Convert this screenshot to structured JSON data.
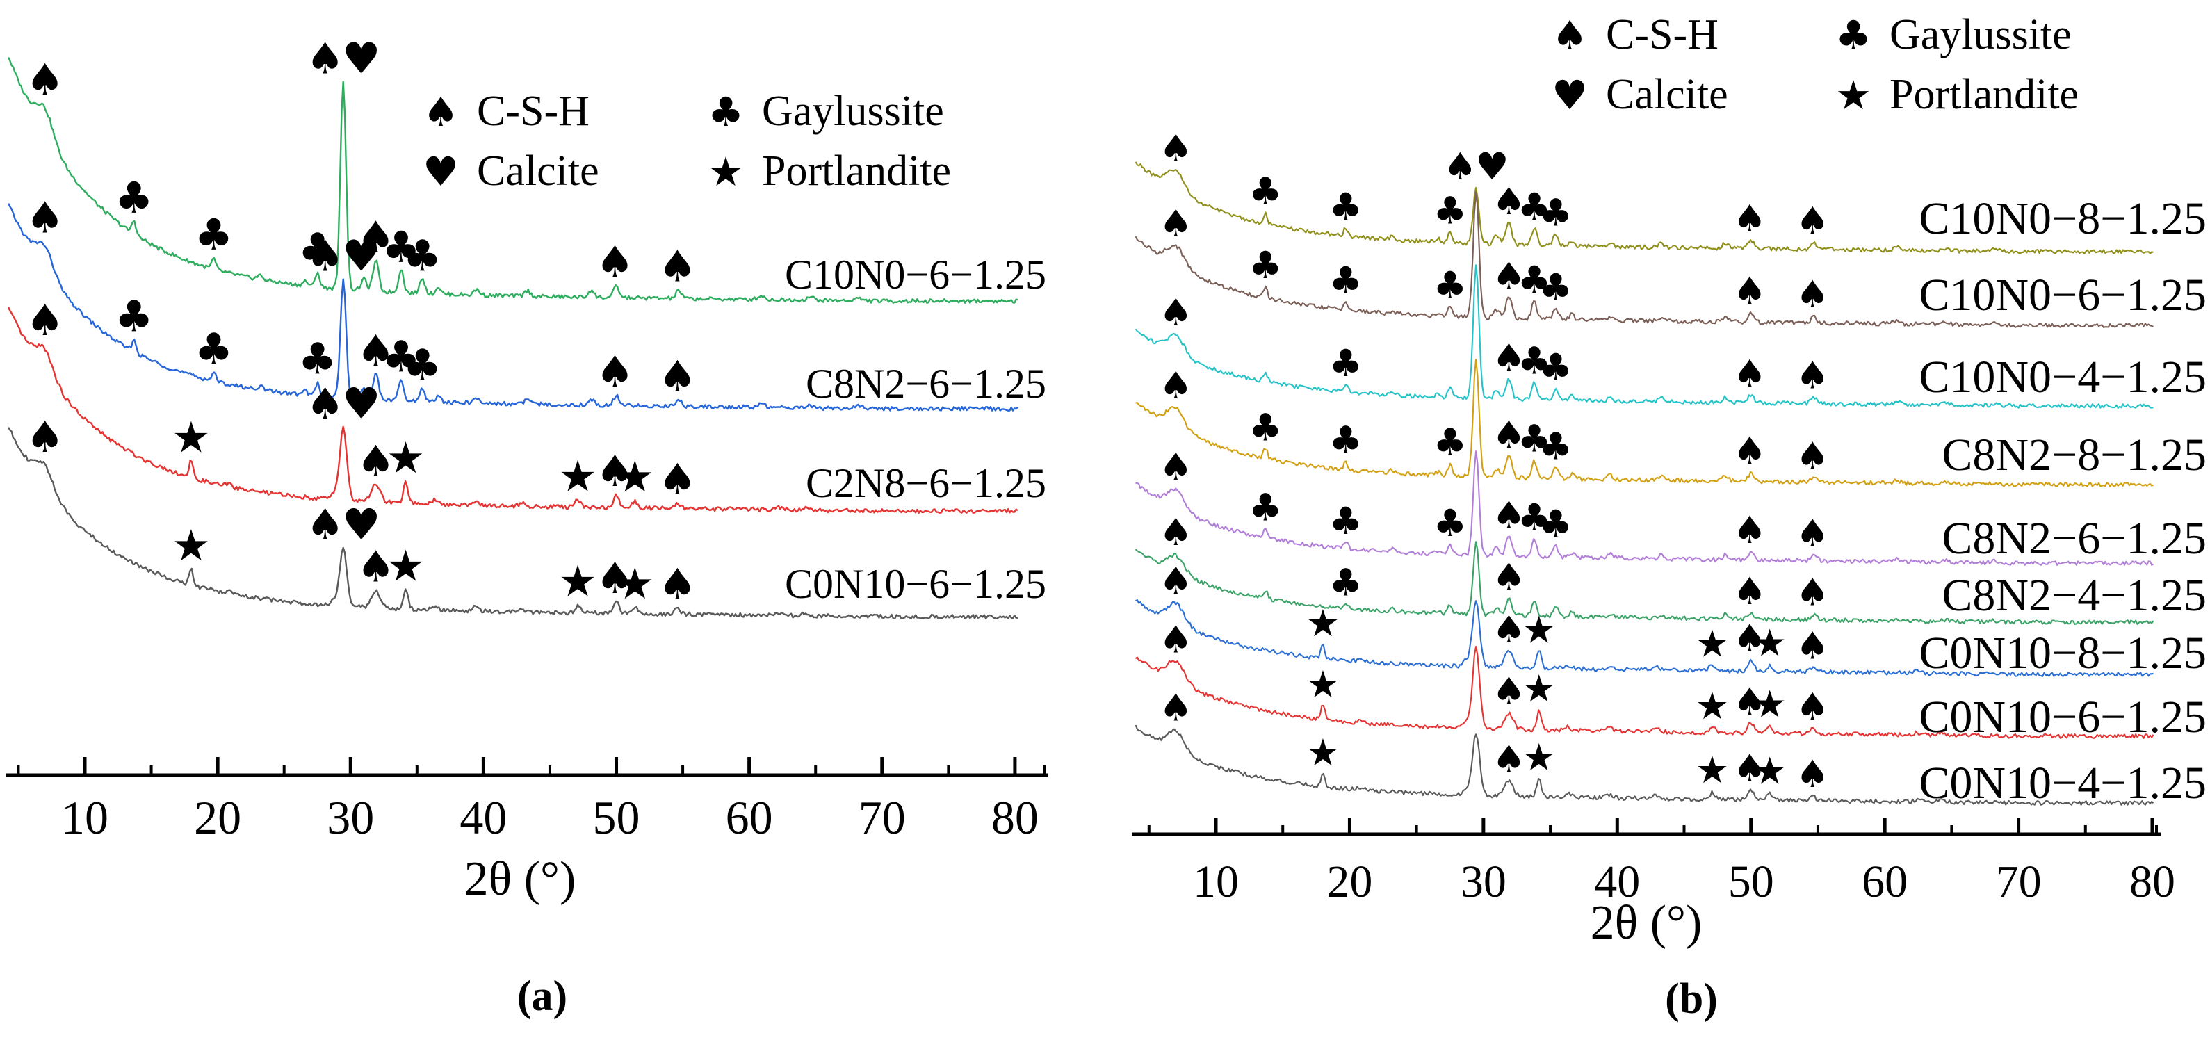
{
  "figure": {
    "panel_a_letter": "(a)",
    "panel_b_letter": "(b)"
  },
  "legend": {
    "items": [
      {
        "symbol": "♠",
        "icon": "spade-icon",
        "label": "C-S-H"
      },
      {
        "symbol": "♣",
        "icon": "club-icon",
        "label": "Gaylussite"
      },
      {
        "symbol": "♥",
        "icon": "heart-icon",
        "label": "Calcite"
      },
      {
        "symbol": "★",
        "icon": "star-icon",
        "label": "Portlandite"
      }
    ]
  },
  "marker_glyphs": {
    "spade": "♠",
    "heart": "♥",
    "club": "♣",
    "star": "★"
  },
  "marker_key": {
    "spade": "C-S-H",
    "heart": "Calcite",
    "club": "Gaylussite",
    "star": "Portlandite"
  },
  "peak_patterns": {
    "G": [
      [
        7.0,
        34,
        0.9
      ],
      [
        13.7,
        17,
        0.22
      ],
      [
        19.7,
        13,
        0.22
      ],
      [
        23.2,
        5,
        0.3
      ],
      [
        26.6,
        6,
        0.25
      ],
      [
        27.5,
        19,
        0.22
      ],
      [
        31.0,
        14,
        0.3
      ],
      [
        31.9,
        38,
        0.3
      ],
      [
        33.8,
        30,
        0.26
      ],
      [
        35.4,
        20,
        0.26
      ],
      [
        36.6,
        9,
        0.25
      ],
      [
        39.5,
        7,
        0.3
      ],
      [
        43.3,
        7,
        0.3
      ],
      [
        48.1,
        9,
        0.3
      ],
      [
        50.0,
        14,
        0.3
      ],
      [
        54.7,
        10,
        0.3
      ],
      [
        60.9,
        5,
        0.35
      ],
      [
        64.6,
        4,
        0.35
      ],
      [
        68.2,
        3,
        0.4
      ]
    ],
    "P": [
      [
        7.0,
        34,
        0.9
      ],
      [
        18.0,
        24,
        0.2
      ],
      [
        20.8,
        4,
        0.3
      ],
      [
        28.7,
        9,
        0.3
      ],
      [
        31.9,
        26,
        0.45
      ],
      [
        34.15,
        30,
        0.24
      ],
      [
        36.3,
        6,
        0.3
      ],
      [
        39.4,
        6,
        0.3
      ],
      [
        42.9,
        5,
        0.3
      ],
      [
        47.1,
        11,
        0.28
      ],
      [
        50.0,
        17,
        0.32
      ],
      [
        51.4,
        10,
        0.28
      ],
      [
        54.6,
        8,
        0.3
      ],
      [
        62.4,
        4,
        0.35
      ],
      [
        64.2,
        3,
        0.35
      ]
    ]
  },
  "chart_data": [
    {
      "type": "line",
      "panel": "a",
      "xlabel": "2θ (°)",
      "xlim": [
        4,
        82
      ],
      "xticks": [
        10,
        20,
        30,
        40,
        50,
        60,
        70,
        80
      ],
      "grid": false,
      "legend_position": "upper right inside",
      "main_peak_2theta": 29.45,
      "series": [
        {
          "name": "C10N0−6−1.25",
          "color": "#2EAD5F",
          "pattern": "G",
          "baseline_y": 433,
          "label_y": 400,
          "start_height": 350,
          "main_peak_height": 300,
          "peak_scale": 1.15,
          "markers": [
            [
              "spade",
              7
            ],
            [
              "club",
              13.7
            ],
            [
              "club",
              19.7
            ],
            [
              "club",
              27.5
            ],
            [
              "spade",
              29.45,
              -26
            ],
            [
              "heart",
              29.45,
              26
            ],
            [
              "spade",
              31.9
            ],
            [
              "club",
              33.8
            ],
            [
              "club",
              35.4
            ],
            [
              "spade",
              49.9
            ],
            [
              "spade",
              54.6
            ]
          ]
        },
        {
          "name": "C8N2−6−1.25",
          "color": "#2766D9",
          "pattern": "G",
          "baseline_y": 588,
          "label_y": 557,
          "start_height": 290,
          "main_peak_height": 172,
          "peak_scale": 1.0,
          "markers": [
            [
              "spade",
              7
            ],
            [
              "club",
              13.7
            ],
            [
              "club",
              19.7
            ],
            [
              "club",
              27.5
            ],
            [
              "spade",
              29.45,
              -26
            ],
            [
              "heart",
              29.45,
              26
            ],
            [
              "spade",
              31.9
            ],
            [
              "club",
              33.8
            ],
            [
              "club",
              35.4
            ],
            [
              "spade",
              49.9
            ],
            [
              "spade",
              54.6
            ]
          ]
        },
        {
          "name": "C2N8−6−1.25",
          "color": "#E43434",
          "pattern": "P",
          "baseline_y": 735,
          "label_y": 700,
          "start_height": 288,
          "main_peak_height": 105,
          "peak_scale": 1.0,
          "markers": [
            [
              "spade",
              7
            ],
            [
              "star",
              18
            ],
            [
              "spade",
              29.45,
              -26
            ],
            [
              "heart",
              29.45,
              26
            ],
            [
              "spade",
              31.9
            ],
            [
              "star",
              34.15
            ],
            [
              "star",
              47.1
            ],
            [
              "spade",
              49.9
            ],
            [
              "star",
              51.4
            ],
            [
              "spade",
              54.6
            ]
          ]
        },
        {
          "name": "C0N10−6−1.25",
          "color": "#5A5A5A",
          "pattern": "P",
          "baseline_y": 887,
          "label_y": 845,
          "start_height": 268,
          "main_peak_height": 82,
          "peak_scale": 0.95,
          "markers": [
            [
              "spade",
              7
            ],
            [
              "star",
              18
            ],
            [
              "spade",
              29.45,
              -26
            ],
            [
              "heart",
              29.45,
              26
            ],
            [
              "spade",
              31.9
            ],
            [
              "star",
              34.15
            ],
            [
              "star",
              47.1
            ],
            [
              "spade",
              49.9
            ],
            [
              "star",
              51.4
            ],
            [
              "spade",
              54.6
            ]
          ]
        }
      ]
    },
    {
      "type": "line",
      "panel": "b",
      "xlabel": "2θ (°)",
      "xlim": [
        4,
        81
      ],
      "xticks": [
        10,
        20,
        30,
        40,
        50,
        60,
        70,
        80
      ],
      "grid": false,
      "legend_position": "top inside",
      "main_peak_2theta": 29.45,
      "series": [
        {
          "name": "C10N0−8−1.25",
          "color": "#8F8F1A",
          "pattern": "G",
          "baseline_y": 362,
          "label_y": 320,
          "start_height": 115,
          "main_peak_height": 80,
          "peak_scale": 0.85,
          "markers": [
            [
              "spade",
              7
            ],
            [
              "club",
              13.7
            ],
            [
              "club",
              19.7
            ],
            [
              "club",
              27.5
            ],
            [
              "spade",
              29.45,
              -23
            ],
            [
              "heart",
              29.45,
              23
            ],
            [
              "spade",
              31.9
            ],
            [
              "club",
              33.8
            ],
            [
              "club",
              35.4
            ],
            [
              "spade",
              49.9
            ],
            [
              "spade",
              54.6
            ]
          ]
        },
        {
          "name": "C10N0−6−1.25",
          "color": "#7C5F57",
          "pattern": "G",
          "baseline_y": 468,
          "label_y": 430,
          "start_height": 112,
          "main_peak_height": 180,
          "peak_scale": 0.85,
          "markers": [
            [
              "spade",
              7
            ],
            [
              "club",
              13.7
            ],
            [
              "club",
              19.7
            ],
            [
              "club",
              27.5
            ],
            [
              "spade",
              31.9
            ],
            [
              "club",
              33.8
            ],
            [
              "club",
              35.4
            ],
            [
              "spade",
              49.9
            ],
            [
              "spade",
              54.6
            ]
          ]
        },
        {
          "name": "C10N0−4−1.25",
          "color": "#25C3C7",
          "pattern": "G",
          "baseline_y": 584,
          "label_y": 548,
          "start_height": 95,
          "main_peak_height": 190,
          "peak_scale": 0.8,
          "markers": [
            [
              "spade",
              7
            ],
            [
              "club",
              19.7
            ],
            [
              "spade",
              31.9
            ],
            [
              "club",
              33.8
            ],
            [
              "club",
              35.4
            ],
            [
              "spade",
              49.9
            ],
            [
              "spade",
              54.6
            ]
          ]
        },
        {
          "name": "C8N2−8−1.25",
          "color": "#D2A012",
          "pattern": "G",
          "baseline_y": 697,
          "label_y": 660,
          "start_height": 105,
          "main_peak_height": 170,
          "peak_scale": 0.85,
          "markers": [
            [
              "spade",
              7
            ],
            [
              "club",
              13.7
            ],
            [
              "club",
              19.7
            ],
            [
              "club",
              27.5
            ],
            [
              "spade",
              31.9
            ],
            [
              "club",
              33.8
            ],
            [
              "club",
              35.4
            ],
            [
              "spade",
              49.9
            ],
            [
              "spade",
              54.6
            ]
          ]
        },
        {
          "name": "C8N2−6−1.25",
          "color": "#B27FD8",
          "pattern": "G",
          "baseline_y": 810,
          "label_y": 780,
          "start_height": 100,
          "main_peak_height": 150,
          "peak_scale": 0.8,
          "markers": [
            [
              "spade",
              7
            ],
            [
              "club",
              13.7
            ],
            [
              "club",
              19.7
            ],
            [
              "club",
              27.5
            ],
            [
              "spade",
              31.9
            ],
            [
              "club",
              33.8
            ],
            [
              "club",
              35.4
            ],
            [
              "spade",
              49.9
            ],
            [
              "spade",
              54.6
            ]
          ]
        },
        {
          "name": "C8N2−4−1.25",
          "color": "#3CA368",
          "pattern": "G",
          "baseline_y": 895,
          "label_y": 862,
          "start_height": 90,
          "main_peak_height": 105,
          "peak_scale": 0.7,
          "markers": [
            [
              "spade",
              7
            ],
            [
              "club",
              19.7
            ],
            [
              "spade",
              31.9
            ],
            [
              "spade",
              49.9
            ],
            [
              "spade",
              54.6
            ]
          ]
        },
        {
          "name": "C0N10−8−1.25",
          "color": "#2C6FD4",
          "pattern": "P",
          "baseline_y": 970,
          "label_y": 945,
          "start_height": 92,
          "main_peak_height": 95,
          "peak_scale": 0.85,
          "markers": [
            [
              "spade",
              7
            ],
            [
              "star",
              18
            ],
            [
              "spade",
              31.9
            ],
            [
              "star",
              34.15
            ],
            [
              "star",
              47.1
            ],
            [
              "spade",
              49.9
            ],
            [
              "star",
              51.4
            ],
            [
              "spade",
              54.6
            ]
          ]
        },
        {
          "name": "C0N10−6−1.25",
          "color": "#E43434",
          "pattern": "P",
          "baseline_y": 1059,
          "label_y": 1037,
          "start_height": 100,
          "main_peak_height": 115,
          "peak_scale": 0.9,
          "markers": [
            [
              "spade",
              7
            ],
            [
              "star",
              18
            ],
            [
              "spade",
              31.9
            ],
            [
              "star",
              34.15
            ],
            [
              "star",
              47.1
            ],
            [
              "spade",
              49.9
            ],
            [
              "star",
              51.4
            ],
            [
              "spade",
              54.6
            ]
          ]
        },
        {
          "name": "C0N10−4−1.25",
          "color": "#5A5A5A",
          "pattern": "P",
          "baseline_y": 1155,
          "label_y": 1132,
          "start_height": 95,
          "main_peak_height": 90,
          "peak_scale": 0.85,
          "markers": [
            [
              "spade",
              7
            ],
            [
              "star",
              18
            ],
            [
              "spade",
              31.9
            ],
            [
              "star",
              34.15
            ],
            [
              "star",
              47.1
            ],
            [
              "spade",
              49.9
            ],
            [
              "star",
              51.4
            ],
            [
              "spade",
              54.6
            ]
          ]
        }
      ]
    }
  ]
}
